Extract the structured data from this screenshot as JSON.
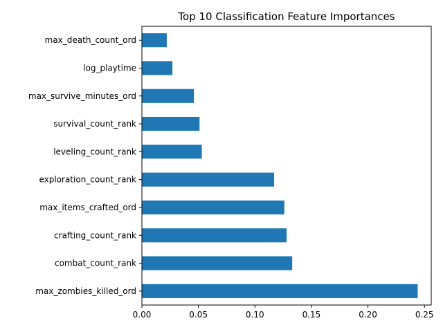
{
  "chart_data": {
    "type": "bar",
    "orientation": "horizontal",
    "title": "Top 10 Classification Feature Importances",
    "xlabel": "",
    "ylabel": "",
    "xlim": [
      0,
      0.256
    ],
    "grid": false,
    "bar_color": "#1f77b4",
    "categories": [
      "max_zombies_killed_ord",
      "combat_count_rank",
      "crafting_count_rank",
      "max_items_crafted_ord",
      "exploration_count_rank",
      "leveling_count_rank",
      "survival_count_rank",
      "max_survive_minutes_ord",
      "log_playtime",
      "max_death_count_ord"
    ],
    "values": [
      0.244,
      0.133,
      0.128,
      0.126,
      0.117,
      0.053,
      0.051,
      0.046,
      0.027,
      0.022
    ],
    "xticks": [
      0,
      0.05,
      0.1,
      0.15,
      0.2,
      0.25
    ],
    "xtick_labels": [
      "0.00",
      "0.05",
      "0.10",
      "0.15",
      "0.20",
      "0.25"
    ]
  }
}
